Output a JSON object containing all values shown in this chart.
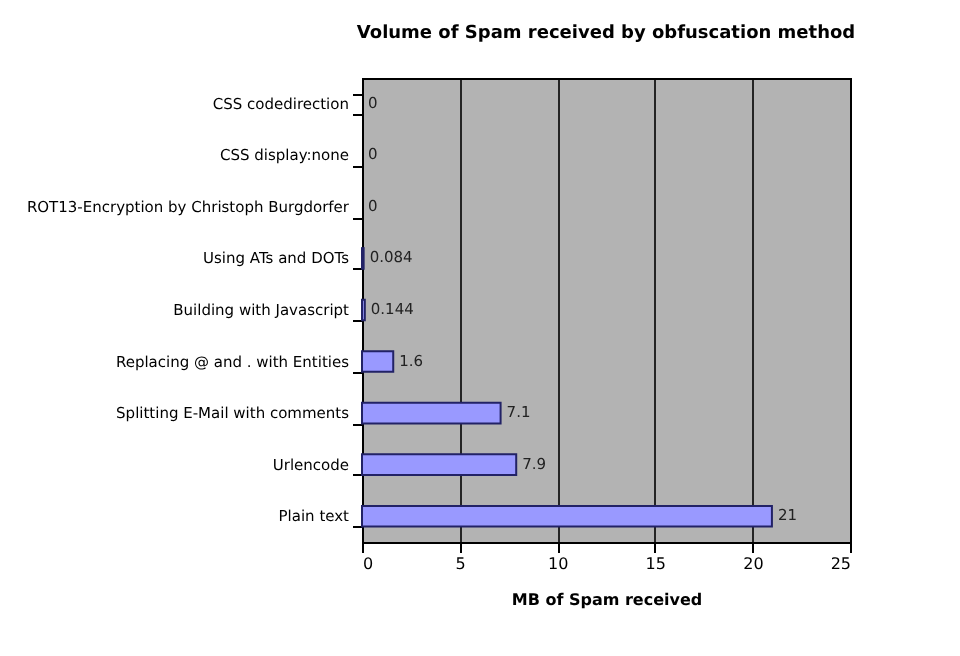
{
  "chart_data": {
    "type": "bar",
    "orientation": "horizontal",
    "title": "Volume of Spam received by obfuscation method",
    "xlabel": "MB of Spam received",
    "categories": [
      "CSS codedirection",
      "CSS display:none",
      "ROT13-Encryption by Christoph Burgdorfer",
      "Using ATs and DOTs",
      "Building with Javascript",
      "Replacing @ and . with Entities",
      "Splitting E-Mail with comments",
      "Urlencode",
      "Plain text"
    ],
    "values": [
      0,
      0,
      0,
      0.084,
      0.144,
      1.6,
      7.1,
      7.9,
      21
    ],
    "color": "#9999ff",
    "xlim": [
      0,
      25
    ],
    "xticks": [
      0,
      5,
      10,
      15,
      20,
      25
    ],
    "grid": "x",
    "data_labels": true
  }
}
